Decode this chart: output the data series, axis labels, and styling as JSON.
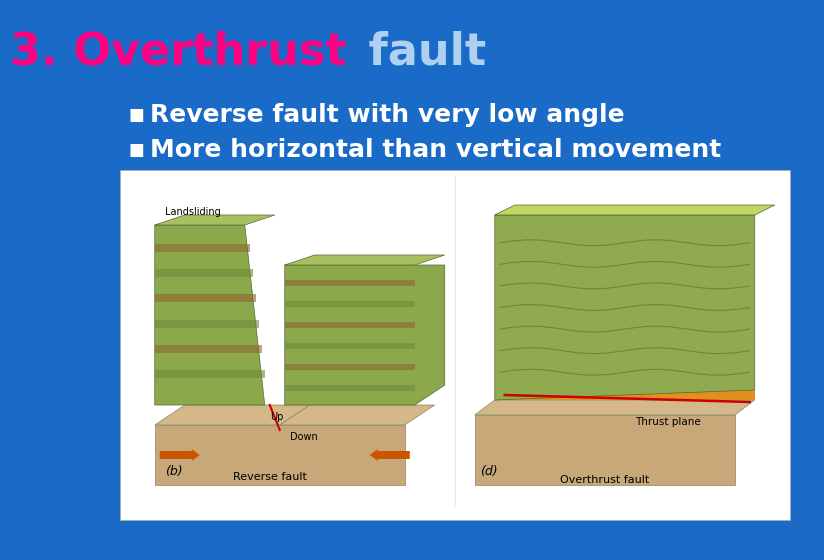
{
  "title_part1": "3. Overthrust",
  "title_part2": " fault",
  "title_color1": "#FF0080",
  "title_color2": "#B0D0F0",
  "title_fontsize": 32,
  "bullet1": "Reverse fault with very low angle",
  "bullet2": "More horizontal than vertical movement",
  "bullet_color": "#FFFFFF",
  "bullet_fontsize": 18,
  "bg_color": "#1A6AC8",
  "image_bg": "#FFFFFF",
  "grid_color": "#3070BB",
  "bullet_marker": "■",
  "bullet_marker_color": "#FFFFFF",
  "tan_color": "#C8A878",
  "green_dark": "#6B8C3A",
  "green_mid": "#8BA84A",
  "green_light": "#A8C060",
  "brown_stripe": "#8B6830",
  "orange_arrow": "#CC5500",
  "orange_thrust": "#E09020",
  "red_fault": "#CC0000"
}
